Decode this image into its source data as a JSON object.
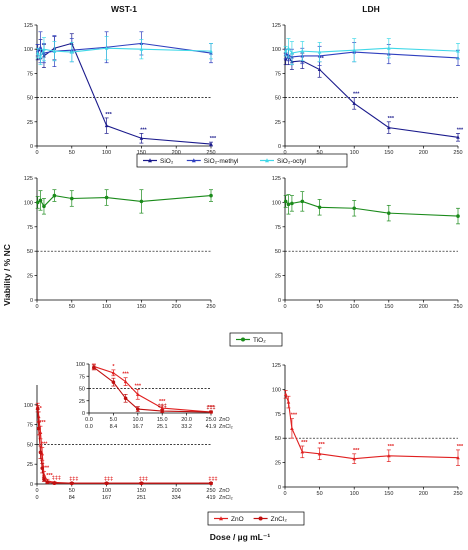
{
  "figure": {
    "y_axis_label": "Viability / % NC",
    "x_axis_label": "Dose / µg mL⁻¹"
  },
  "legends": {
    "silica": [
      "SiO₂",
      "SiO₂-methyl",
      "SiO₂-octyl"
    ],
    "tio2": [
      "TiO₂"
    ],
    "zinc": [
      "ZnO",
      "ZnCl₂"
    ]
  },
  "colors": {
    "sio2": "#1a1a8c",
    "sio2_methyl": "#2f3fbf",
    "sio2_octyl": "#40d8e8",
    "tio2": "#1a8a1a",
    "zno": "#e02020",
    "zncl2": "#c01010",
    "reference_line": "#000000"
  },
  "chart_data": [
    {
      "id": "wst1-silica",
      "type": "line",
      "title": "WST-1",
      "xlabel": "",
      "ylabel": "",
      "xlim": [
        0,
        250
      ],
      "ylim": [
        0,
        125
      ],
      "x_ticks": [
        0,
        50,
        100,
        150,
        200,
        250
      ],
      "y_ticks": [
        0,
        25,
        50,
        75,
        100,
        125
      ],
      "reference_line": 50,
      "x": [
        1,
        5,
        10,
        25,
        50,
        100,
        150,
        250
      ],
      "series": [
        {
          "name": "SiO₂",
          "color_key": "sio2",
          "values": [
            97,
            100,
            93,
            101,
            106,
            21,
            8,
            2
          ],
          "errors": [
            8,
            10,
            12,
            12,
            10,
            8,
            5,
            2
          ],
          "stars": [
            "",
            "",
            "",
            "",
            "",
            "***",
            "***",
            "***"
          ]
        },
        {
          "name": "SiO₂-methyl",
          "color_key": "sio2_methyl",
          "values": [
            99,
            102,
            96,
            98,
            99,
            102,
            106,
            96
          ],
          "errors": [
            6,
            16,
            10,
            16,
            12,
            16,
            12,
            10
          ],
          "stars": [
            "",
            "",
            "",
            "",
            "",
            "",
            "",
            ""
          ]
        },
        {
          "name": "SiO₂-octyl",
          "color_key": "sio2_octyl",
          "values": [
            96,
            92,
            100,
            98,
            97,
            101,
            100,
            98
          ],
          "errors": [
            5,
            8,
            12,
            10,
            10,
            12,
            10,
            8
          ],
          "stars": [
            "",
            "",
            "",
            "",
            "",
            "",
            "",
            ""
          ]
        }
      ]
    },
    {
      "id": "ldh-silica",
      "type": "line",
      "title": "LDH",
      "xlabel": "",
      "ylabel": "",
      "xlim": [
        0,
        250
      ],
      "ylim": [
        0,
        125
      ],
      "x_ticks": [
        0,
        50,
        100,
        150,
        200,
        250
      ],
      "y_ticks": [
        0,
        25,
        50,
        75,
        100,
        125
      ],
      "reference_line": 50,
      "x": [
        1,
        5,
        10,
        25,
        50,
        100,
        150,
        250
      ],
      "series": [
        {
          "name": "SiO₂",
          "color_key": "sio2",
          "values": [
            90,
            92,
            87,
            88,
            79,
            44,
            19,
            9
          ],
          "errors": [
            6,
            8,
            8,
            8,
            8,
            6,
            6,
            4
          ],
          "stars": [
            "",
            "",
            "",
            "",
            "**",
            "***",
            "***",
            "***"
          ]
        },
        {
          "name": "SiO₂-methyl",
          "color_key": "sio2_methyl",
          "values": [
            95,
            94,
            92,
            93,
            93,
            97,
            95,
            91
          ],
          "errors": [
            5,
            6,
            8,
            8,
            10,
            10,
            10,
            8
          ],
          "stars": [
            "",
            "",
            "",
            "",
            "",
            "",
            "",
            ""
          ]
        },
        {
          "name": "SiO₂-octyl",
          "color_key": "sio2_octyl",
          "values": [
            98,
            101,
            96,
            98,
            97,
            99,
            101,
            98
          ],
          "errors": [
            5,
            10,
            12,
            10,
            10,
            12,
            10,
            8
          ],
          "stars": [
            "",
            "",
            "",
            "",
            "",
            "",
            "",
            ""
          ]
        }
      ]
    },
    {
      "id": "wst1-tio2",
      "type": "line",
      "title": "",
      "xlabel": "",
      "ylabel": "",
      "xlim": [
        0,
        250
      ],
      "ylim": [
        0,
        125
      ],
      "x_ticks": [
        0,
        50,
        100,
        150,
        200,
        250
      ],
      "y_ticks": [
        0,
        25,
        50,
        75,
        100,
        125
      ],
      "reference_line": 50,
      "x": [
        1,
        5,
        10,
        25,
        50,
        100,
        150,
        250
      ],
      "series": [
        {
          "name": "TiO₂",
          "color_key": "tio2",
          "values": [
            100,
            102,
            96,
            107,
            104,
            105,
            101,
            107
          ],
          "errors": [
            6,
            10,
            8,
            6,
            8,
            8,
            12,
            6
          ],
          "stars": [
            "",
            "",
            "",
            "",
            "",
            "",
            "",
            ""
          ]
        }
      ]
    },
    {
      "id": "ldh-tio2",
      "type": "line",
      "title": "",
      "xlabel": "",
      "ylabel": "",
      "xlim": [
        0,
        250
      ],
      "ylim": [
        0,
        125
      ],
      "x_ticks": [
        0,
        50,
        100,
        150,
        200,
        250
      ],
      "y_ticks": [
        0,
        25,
        50,
        75,
        100,
        125
      ],
      "reference_line": 50,
      "x": [
        1,
        5,
        10,
        25,
        50,
        100,
        150,
        250
      ],
      "series": [
        {
          "name": "TiO₂",
          "color_key": "tio2",
          "values": [
            101,
            98,
            99,
            101,
            95,
            94,
            89,
            86
          ],
          "errors": [
            6,
            10,
            8,
            10,
            8,
            8,
            8,
            8
          ],
          "stars": [
            "",
            "",
            "",
            "",
            "",
            "",
            "",
            ""
          ]
        }
      ]
    },
    {
      "id": "wst1-zinc",
      "type": "line",
      "title": "",
      "xlabel": "",
      "ylabel": "",
      "xlim": [
        0,
        250
      ],
      "ylim": [
        0,
        125
      ],
      "x_ticks": [
        0,
        50,
        100,
        150,
        200,
        250
      ],
      "y_ticks": [
        0,
        25,
        50,
        75,
        100
      ],
      "reference_line": 50,
      "secondary_row_labels": [
        "ZnO",
        "ZnCl₂"
      ],
      "secondary_ticks": [
        "0",
        "84",
        "167",
        "251",
        "334",
        "419"
      ],
      "x": [
        1,
        2.5,
        5,
        7.5,
        10,
        15,
        25,
        50,
        100,
        150,
        250
      ],
      "series": [
        {
          "name": "ZnO",
          "color_key": "zno",
          "values": [
            98,
            85,
            65,
            38,
            12,
            4,
            2,
            1,
            1,
            1,
            1
          ],
          "errors": [
            4,
            6,
            8,
            8,
            4,
            2,
            1,
            1,
            1,
            1,
            1
          ],
          "stars": [
            "",
            "*",
            "***",
            "***",
            "***",
            "***",
            "‡‡‡",
            "‡‡‡",
            "‡‡‡",
            "‡‡‡",
            "‡‡‡"
          ]
        },
        {
          "name": "ZnCl₂",
          "color_key": "zncl2",
          "values": [
            95,
            70,
            40,
            20,
            6,
            2,
            1,
            1,
            1,
            1,
            1
          ],
          "errors": [
            4,
            8,
            8,
            6,
            3,
            1,
            1,
            1,
            1,
            1,
            1
          ],
          "stars": [
            "",
            "",
            "",
            "",
            "",
            "",
            "",
            "",
            "",
            "",
            ""
          ]
        }
      ]
    },
    {
      "id": "wst1-zinc-inset",
      "type": "line",
      "title": "",
      "xlabel": "",
      "ylabel": "",
      "xlim": [
        0,
        25
      ],
      "ylim": [
        0,
        100
      ],
      "x_tick_labels": [
        "0.0",
        "5.0",
        "10.0",
        "15.0",
        "20.0",
        "25.0"
      ],
      "y_ticks": [
        0,
        25,
        50,
        75,
        100
      ],
      "reference_line": 50,
      "secondary_row_labels": [
        "ZnO",
        "ZnCl₂"
      ],
      "secondary_ticks": [
        "0.0",
        "8.4",
        "16.7",
        "25.1",
        "33.2",
        "41.9"
      ],
      "x": [
        1,
        5,
        7.5,
        10,
        15,
        25
      ],
      "series": [
        {
          "name": "ZnO",
          "color_key": "zno",
          "values": [
            95,
            82,
            64,
            38,
            10,
            2
          ],
          "errors": [
            5,
            6,
            8,
            10,
            6,
            2
          ],
          "stars": [
            "",
            "*",
            "***",
            "***",
            "***",
            "***"
          ]
        },
        {
          "name": "ZnCl₂",
          "color_key": "zncl2",
          "values": [
            93,
            63,
            30,
            8,
            4,
            2
          ],
          "errors": [
            5,
            8,
            8,
            5,
            3,
            2
          ],
          "stars": [
            "",
            "",
            "",
            "",
            "‡‡‡",
            "‡‡‡"
          ]
        }
      ]
    },
    {
      "id": "ldh-zinc",
      "type": "line",
      "title": "",
      "xlabel": "",
      "ylabel": "",
      "xlim": [
        0,
        250
      ],
      "ylim": [
        0,
        125
      ],
      "x_ticks": [
        0,
        50,
        100,
        150,
        200,
        250
      ],
      "y_ticks": [
        0,
        25,
        50,
        75,
        100,
        125
      ],
      "reference_line": 50,
      "x": [
        1,
        5,
        10,
        25,
        50,
        100,
        150,
        250
      ],
      "series": [
        {
          "name": "ZnO",
          "color_key": "zno",
          "values": [
            95,
            87,
            60,
            36,
            34,
            29,
            32,
            30
          ],
          "errors": [
            4,
            6,
            10,
            6,
            6,
            5,
            6,
            8
          ],
          "stars": [
            "",
            "",
            "***",
            "***",
            "***",
            "***",
            "***",
            "***"
          ]
        }
      ]
    }
  ]
}
